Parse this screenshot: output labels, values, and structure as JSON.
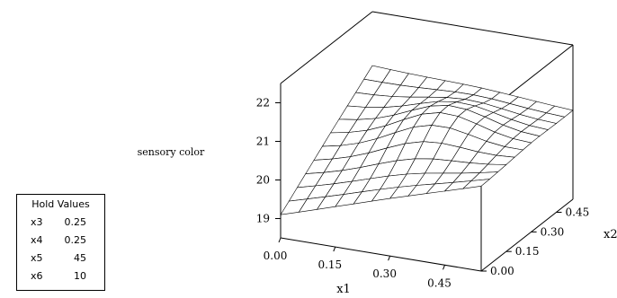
{
  "chart_data": {
    "type": "surface",
    "zlabel": "sensory color",
    "xlabel": "x1",
    "ylabel": "x2",
    "x_ticks": [
      "0.00",
      "0.15",
      "0.30",
      "0.45"
    ],
    "y_ticks": [
      "0.00",
      "0.15",
      "0.30",
      "0.45"
    ],
    "z_ticks": [
      "19",
      "20",
      "21",
      "22"
    ],
    "x_range": [
      0,
      0.55
    ],
    "y_range": [
      0,
      0.55
    ],
    "z_range": [
      18.5,
      22.5
    ],
    "grid_x": [
      0.0,
      0.05,
      0.1,
      0.15,
      0.2,
      0.25,
      0.3,
      0.35,
      0.4,
      0.45,
      0.5,
      0.55
    ],
    "grid_y": [
      0.0,
      0.05,
      0.1,
      0.15,
      0.2,
      0.25,
      0.3,
      0.35,
      0.4,
      0.45,
      0.5,
      0.55
    ],
    "corner_z": {
      "x0_y0": 19.1,
      "x1_y0": 20.7,
      "x0_y1": 21.1,
      "x1_y1": 20.8
    },
    "peak": {
      "x": 0.3,
      "y": 0.3,
      "z": 21.2
    }
  },
  "hold_values": {
    "title": "Hold Values",
    "rows": [
      {
        "name": "x3",
        "value": "0.25"
      },
      {
        "name": "x4",
        "value": "0.25"
      },
      {
        "name": "x5",
        "value": "45"
      },
      {
        "name": "x6",
        "value": "10"
      }
    ]
  }
}
